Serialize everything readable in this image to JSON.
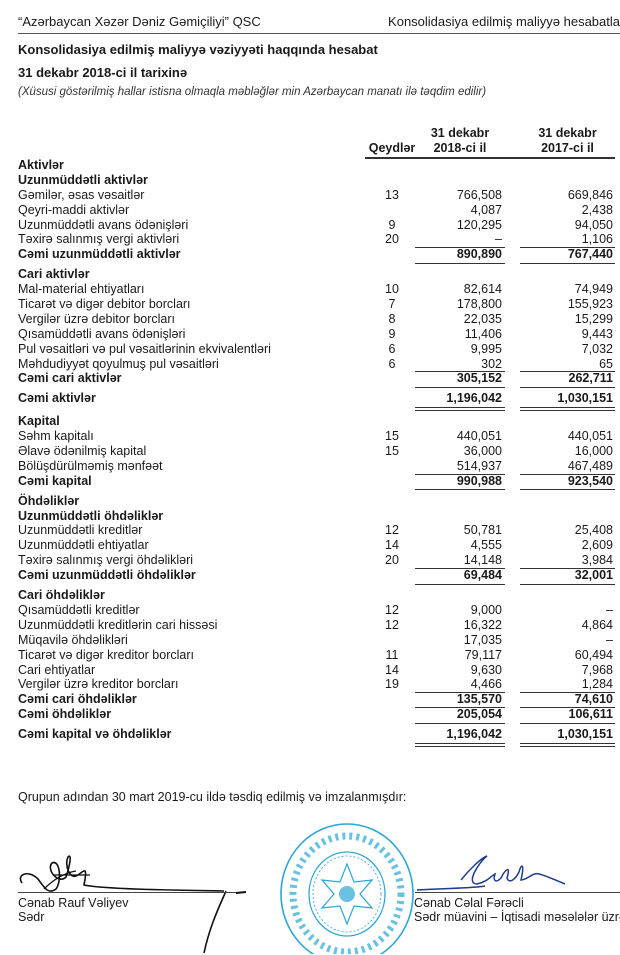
{
  "header": {
    "company": "“Azərbaycan Xəzər Dəniz Gəmiçiliyi” QSC",
    "section": "Konsolidasiya edilmiş maliyyə hesabatla"
  },
  "title": "Konsolidasiya edilmiş maliyyə vəziyyəti haqqında hesabat",
  "subtitle": "31 dekabr 2018-ci il tarixinə",
  "note": "(Xüsusi göstərilmiş hallar istisna olmaqla məbləğlər min Azərbaycan manatı ilə təqdim edilir)",
  "columns": {
    "notes": "Qeydlər",
    "col2018": "31 dekabr\n2018-ci il",
    "col2017": "31 dekabr\n2017-ci il"
  },
  "rows": [
    {
      "label": "Aktivlər",
      "style": "heading"
    },
    {
      "label": "Uzunmüddətli aktivlər",
      "style": "heading"
    },
    {
      "label": "Gəmilər, əsas vəsaitlər",
      "note": "13",
      "v2018": "766,508",
      "v2017": "669,846"
    },
    {
      "label": "Qeyri-maddi aktivlər",
      "note": "",
      "v2018": "4,087",
      "v2017": "2,438"
    },
    {
      "label": "Uzunmüddətli avans ödənişləri",
      "note": "9",
      "v2018": "120,295",
      "v2017": "94,050"
    },
    {
      "label": "Təxirə salınmış vergi aktivləri",
      "note": "20",
      "v2018": "–",
      "v2017": "1,106"
    },
    {
      "label": "Cəmi uzunmüddətli aktivlər",
      "style": "total",
      "v2018": "890,890",
      "v2017": "767,440"
    },
    {
      "label": "Cari aktivlər",
      "style": "heading",
      "gap": true
    },
    {
      "label": "Mal-material ehtiyatları",
      "note": "10",
      "v2018": "82,614",
      "v2017": "74,949"
    },
    {
      "label": "Ticarət və digər debitor borcları",
      "note": "7",
      "v2018": "178,800",
      "v2017": "155,923"
    },
    {
      "label": "Vergilər üzrə debitor borcları",
      "note": "8",
      "v2018": "22,035",
      "v2017": "15,299"
    },
    {
      "label": "Qısamüddətli avans ödənişləri",
      "note": "9",
      "v2018": "11,406",
      "v2017": "9,443"
    },
    {
      "label": "Pul vəsaitləri və pul vəsaitlərinin ekvivalentləri",
      "note": "6",
      "v2018": "9,995",
      "v2017": "7,032"
    },
    {
      "label": "Məhdudiyyət qoyulmuş pul vəsaitləri",
      "note": "6",
      "v2018": "302",
      "v2017": "65"
    },
    {
      "label": "Cəmi cari aktivlər",
      "style": "total",
      "v2018": "305,152",
      "v2017": "262,711"
    },
    {
      "label": "Cəmi aktivlər",
      "style": "grand",
      "gap": true,
      "v2018": "1,196,042",
      "v2017": "1,030,151"
    },
    {
      "label": "Kapital",
      "style": "heading",
      "gap2": true
    },
    {
      "label": "Səhm kapitalı",
      "note": "15",
      "v2018": "440,051",
      "v2017": "440,051"
    },
    {
      "label": "Əlavə ödənilmiş kapital",
      "note": "15",
      "v2018": "36,000",
      "v2017": "16,000"
    },
    {
      "label": "Bölüşdürülməmiş mənfəət",
      "note": "",
      "v2018": "514,937",
      "v2017": "467,489"
    },
    {
      "label": "Cəmi kapital",
      "style": "total",
      "v2018": "990,988",
      "v2017": "923,540"
    },
    {
      "label": "Öhdəliklər",
      "style": "heading",
      "gap": true
    },
    {
      "label": "Uzunmüddətli öhdəliklər",
      "style": "heading"
    },
    {
      "label": "Uzunmüddətli kreditlər",
      "note": "12",
      "v2018": "50,781",
      "v2017": "25,408"
    },
    {
      "label": "Uzunmüddətli ehtiyatlar",
      "note": "14",
      "v2018": "4,555",
      "v2017": "2,609"
    },
    {
      "label": "Təxirə salınmış vergi öhdəlikləri",
      "note": "20",
      "v2018": "14,148",
      "v2017": "3,984"
    },
    {
      "label": "Cəmi uzunmüddətli öhdəliklər",
      "style": "total",
      "v2018": "69,484",
      "v2017": "32,001"
    },
    {
      "label": "Cari öhdəliklər",
      "style": "heading",
      "gap": true
    },
    {
      "label": "Qısamüddətli kreditlər",
      "note": "12",
      "v2018": "9,000",
      "v2017": "–"
    },
    {
      "label": "Uzunmüddətli kreditlərin cari hissəsi",
      "note": "12",
      "v2018": "16,322",
      "v2017": "4,864"
    },
    {
      "label": "Müqavilə öhdəlikləri",
      "note": "",
      "v2018": "17,035",
      "v2017": "–"
    },
    {
      "label": "Ticarət və digər kreditor borcları",
      "note": "11",
      "v2018": "79,117",
      "v2017": "60,494"
    },
    {
      "label": "Cari ehtiyatlar",
      "note": "14",
      "v2018": "9,630",
      "v2017": "7,968"
    },
    {
      "label": "Vergilər üzrə kreditor borcları",
      "note": "19",
      "v2018": "4,466",
      "v2017": "1,284"
    },
    {
      "label": "Cəmi cari öhdəliklər",
      "style": "subtotal",
      "v2018": "135,570",
      "v2017": "74,610"
    },
    {
      "label": "Cəmi öhdəliklər",
      "style": "total",
      "v2018": "205,054",
      "v2017": "106,611"
    },
    {
      "label": "Cəmi kapital və öhdəliklər",
      "style": "grand",
      "gap": true,
      "v2018": "1,196,042",
      "v2017": "1,030,151"
    }
  ],
  "approval": "Qrupun adından 30 mart 2019-cu ildə təsdiq edilmiş və imzalanmışdır:",
  "signatories": [
    {
      "name": "Cənab Rauf Vəliyev",
      "title": "Sədr"
    },
    {
      "name": "Cənab Cəlal Fərəcli",
      "title": "Sədr müavini – İqtisadi məsələlər üzrə"
    }
  ],
  "stamp": {
    "text": "Azərbaycan Respublikası • Xəzər Dəniz Gəmiçiliyi • QSC • Caspian Shipping",
    "color": "#2aa6d6"
  }
}
